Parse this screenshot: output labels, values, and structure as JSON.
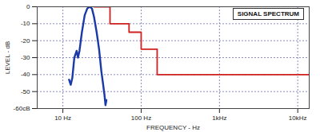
{
  "chart_data": {
    "type": "line",
    "title": "SIGNAL SPECTRUM",
    "xlabel": "FREQUENCY - Hz",
    "ylabel": "LEVEL - dB",
    "log": "x",
    "grid": true,
    "xlim": [
      4.7,
      14000
    ],
    "xticks": [
      {
        "value": 10,
        "label": "10 Hz"
      },
      {
        "value": 100,
        "label": "100 Hz"
      },
      {
        "value": 1000,
        "label": "1kHz"
      },
      {
        "value": 10000,
        "label": "10kHz"
      }
    ],
    "ylim": [
      -60,
      0
    ],
    "yticks": [
      0,
      -10,
      -20,
      -30,
      -40,
      -50,
      {
        "value": -60,
        "label": "-60cB"
      }
    ],
    "series": [
      {
        "color": "#1a3aa8",
        "type": "line",
        "x": [
          12,
          12.6,
          13.2,
          14,
          15,
          15.6,
          16.3,
          17.5,
          19,
          20.5,
          22,
          23.5,
          25,
          27,
          29,
          31,
          32.5,
          34,
          35,
          36
        ],
        "values": [
          -43,
          -46,
          -42,
          -30,
          -26,
          -30,
          -26,
          -15,
          -5,
          -1,
          0,
          -1,
          -6,
          -15,
          -25,
          -38,
          -45,
          -52,
          -58,
          -55
        ]
      },
      {
        "color": "#d02020",
        "type": "step",
        "x": [
          25,
          40,
          70,
          100,
          160,
          14000
        ],
        "values": [
          0,
          -10,
          -15,
          -25,
          -40,
          -40
        ]
      }
    ]
  }
}
